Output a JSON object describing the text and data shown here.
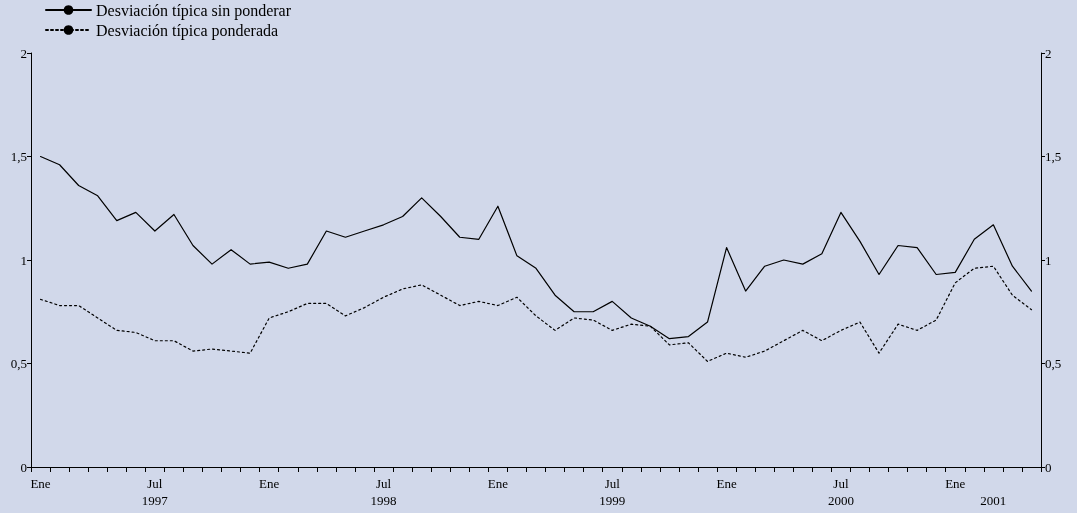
{
  "chart_data": {
    "type": "line",
    "categories": [
      "Ene",
      null,
      null,
      null,
      null,
      null,
      "Jul\n1997",
      null,
      null,
      null,
      null,
      null,
      "Ene",
      null,
      null,
      null,
      null,
      null,
      "Jul\n1998",
      null,
      null,
      null,
      null,
      null,
      "Ene",
      null,
      null,
      null,
      null,
      null,
      "Jul\n1999",
      null,
      null,
      null,
      null,
      null,
      "Ene",
      null,
      null,
      null,
      null,
      null,
      "Jul\n2000",
      null,
      null,
      null,
      null,
      null,
      "Ene",
      null,
      "\n2001",
      null,
      null
    ],
    "series": [
      {
        "name": "Desviación típica sin ponderar",
        "color": "#000000",
        "line_style": "solid",
        "values": [
          1.5,
          1.46,
          1.36,
          1.31,
          1.19,
          1.23,
          1.14,
          1.22,
          1.07,
          0.98,
          1.05,
          0.98,
          0.99,
          0.96,
          0.98,
          1.14,
          1.11,
          1.14,
          1.17,
          1.21,
          1.3,
          1.21,
          1.11,
          1.1,
          1.26,
          1.02,
          0.96,
          0.83,
          0.75,
          0.75,
          0.8,
          0.72,
          0.68,
          0.62,
          0.63,
          0.7,
          1.06,
          0.85,
          0.97,
          1.0,
          0.98,
          1.03,
          1.23,
          1.09,
          0.93,
          1.07,
          1.06,
          0.93,
          0.94,
          1.1,
          1.17,
          0.97,
          0.85
        ]
      },
      {
        "name": "Desviación típica ponderada",
        "color": "#000000",
        "line_style": "dotted",
        "values": [
          0.81,
          0.78,
          0.78,
          0.72,
          0.66,
          0.65,
          0.61,
          0.61,
          0.56,
          0.57,
          0.56,
          0.55,
          0.72,
          0.75,
          0.79,
          0.79,
          0.73,
          0.77,
          0.82,
          0.86,
          0.88,
          0.83,
          0.78,
          0.8,
          0.78,
          0.82,
          0.73,
          0.66,
          0.72,
          0.71,
          0.66,
          0.69,
          0.68,
          0.59,
          0.6,
          0.51,
          0.55,
          0.53,
          0.56,
          0.61,
          0.66,
          0.61,
          0.66,
          0.7,
          0.55,
          0.69,
          0.66,
          0.71,
          0.89,
          0.96,
          0.97,
          0.83,
          0.76
        ]
      }
    ],
    "ylim": [
      0,
      2
    ],
    "yticks": [
      0,
      {
        "value": 0.5,
        "label": "0,5"
      },
      1,
      {
        "value": 1.5,
        "label": "1,5"
      },
      2
    ],
    "y2lim": [
      0,
      2
    ],
    "y2ticks": [
      0,
      {
        "value": 0.5,
        "label": "0,5"
      },
      1,
      {
        "value": 1.5,
        "label": "1,5"
      },
      2
    ],
    "grid": false,
    "legend": "top left",
    "marker": "none"
  }
}
